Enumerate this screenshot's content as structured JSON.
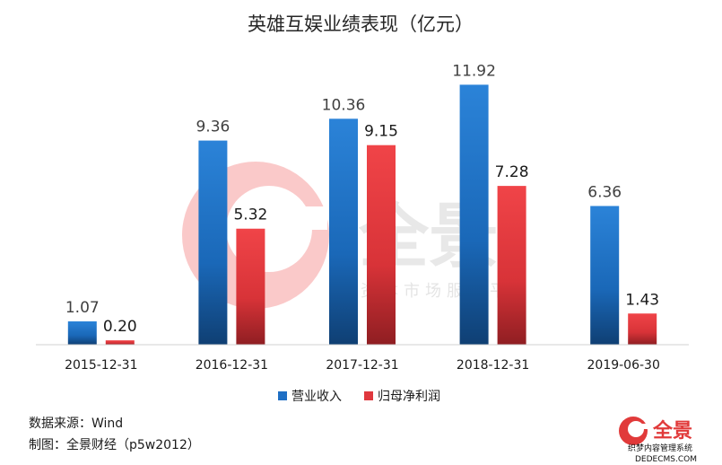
{
  "chart_data": {
    "type": "bar",
    "title": "英雄互娱业绩表现（亿元）",
    "categories": [
      "2015-12-31",
      "2016-12-31",
      "2017-12-31",
      "2018-12-31",
      "2019-06-30"
    ],
    "series": [
      {
        "name": "营业收入",
        "values": [
          1.07,
          9.36,
          10.36,
          11.92,
          6.36
        ],
        "labels": [
          "1.07",
          "9.36",
          "10.36",
          "11.92",
          "6.36"
        ],
        "color": "#1f6fc4"
      },
      {
        "name": "归母净利润",
        "values": [
          0.2,
          5.32,
          9.15,
          7.28,
          1.43
        ],
        "labels": [
          "0.20",
          "5.32",
          "9.15",
          "7.28",
          "1.43"
        ],
        "color": "#e0383e"
      }
    ],
    "ylim": [
      0,
      12
    ],
    "grid": false,
    "legend_position": "bottom"
  },
  "footer": {
    "source": "数据来源：Wind",
    "credit": "制图：全景财经（p5w2012）"
  },
  "watermark": {
    "main": "全景",
    "sub": "资本市场服务平台"
  },
  "logo": {
    "text": "全景",
    "sub": "织梦内容管理系统",
    "url": "DEDECMS.COM"
  }
}
